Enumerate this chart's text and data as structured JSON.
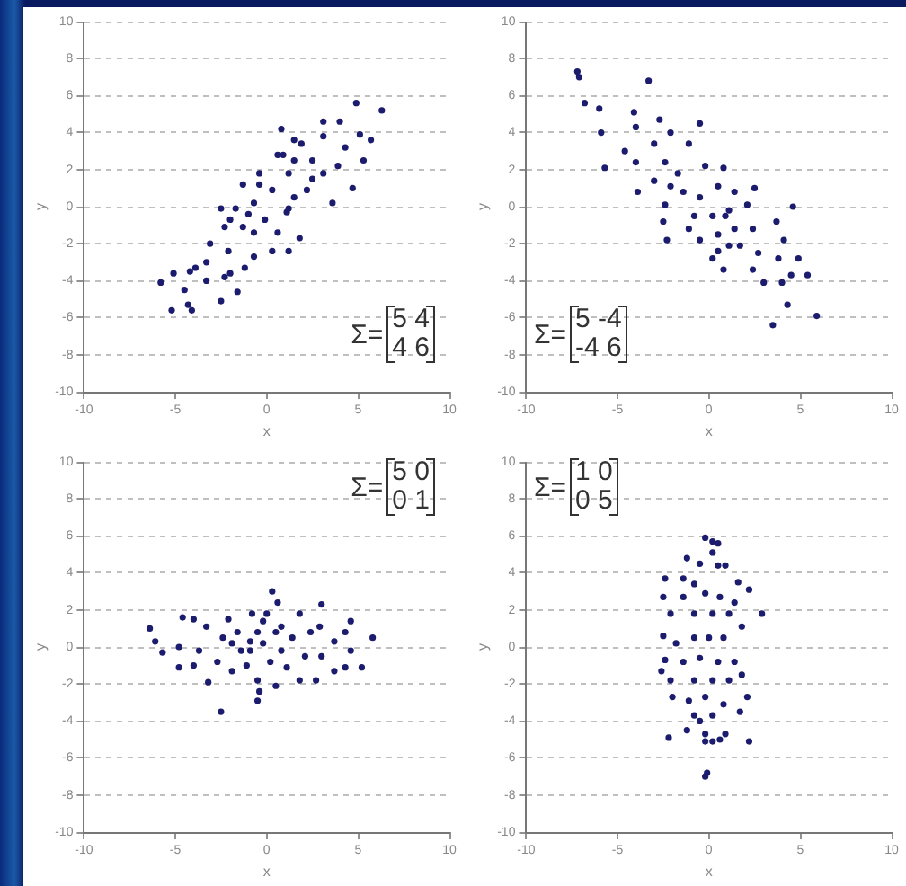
{
  "chart_data": [
    {
      "type": "scatter",
      "xlabel": "x",
      "ylabel": "y",
      "xlim": [
        -10,
        10
      ],
      "xticks": [
        -10,
        -5,
        0,
        5,
        10
      ],
      "ylim": [
        -10,
        10
      ],
      "yticks": [
        -10,
        -8,
        -6,
        -4,
        -2,
        0,
        2,
        4,
        6,
        8,
        10
      ],
      "grid": "y",
      "marker": "circle",
      "annotations": [
        "Σ=",
        "5 4",
        "4 6"
      ],
      "series": [
        {
          "color": "#1c1c6e",
          "x": [
            4.9,
            6.3,
            4.0,
            3.1,
            5.1,
            5.7,
            4.3,
            0.8,
            1.5,
            0.6,
            2.5,
            -0.4,
            1.2,
            3.1,
            5.3,
            3.9,
            4.7,
            3.6,
            -1.3,
            0.3,
            1.5,
            2.2,
            1.2,
            -0.7,
            -1.7,
            -2.5,
            -2.3,
            -1.3,
            -0.7,
            -0.1,
            0.6,
            1.8,
            1.2,
            0.3,
            -0.7,
            -1.2,
            -2.1,
            -3.1,
            -3.3,
            -3.9,
            -2.3,
            -3.3,
            -4.2,
            -5.1,
            -5.8,
            -4.5,
            -4.3,
            -5.2,
            -4.1,
            -2.5,
            -1.6,
            -2.0,
            1.1,
            -2.0,
            -1.0,
            -0.4,
            0.9,
            1.9,
            3.1,
            1.5,
            2.5
          ],
          "values": [
            5.6,
            5.2,
            4.6,
            4.6,
            3.9,
            3.6,
            3.2,
            4.2,
            3.6,
            2.8,
            2.5,
            1.8,
            1.8,
            1.8,
            2.5,
            2.2,
            1.0,
            0.2,
            1.2,
            0.9,
            0.5,
            0.9,
            -0.1,
            0.2,
            -0.1,
            -0.1,
            -1.1,
            -1.1,
            -1.4,
            -0.7,
            -1.4,
            -1.7,
            -2.4,
            -2.4,
            -2.7,
            -3.3,
            -2.4,
            -2.0,
            -3.0,
            -3.3,
            -3.8,
            -4.0,
            -3.5,
            -3.6,
            -4.1,
            -4.5,
            -5.3,
            -5.6,
            -5.6,
            -5.1,
            -4.6,
            -3.6,
            -0.3,
            -0.7,
            -0.4,
            1.2,
            2.8,
            3.4,
            3.8,
            2.5,
            1.5
          ]
        }
      ]
    },
    {
      "type": "scatter",
      "xlabel": "x",
      "ylabel": "y",
      "xlim": [
        -10,
        10
      ],
      "xticks": [
        -10,
        -5,
        0,
        5,
        10
      ],
      "ylim": [
        -10,
        10
      ],
      "yticks": [
        -10,
        -8,
        -6,
        -4,
        -2,
        0,
        2,
        4,
        6,
        8,
        10
      ],
      "grid": "y",
      "marker": "circle",
      "annotations": [
        "Σ=",
        "5 -4",
        "-4 6"
      ],
      "series": [
        {
          "color": "#1c1c6e",
          "x": [
            -7.2,
            -7.1,
            -6.8,
            -6.0,
            -5.9,
            -5.7,
            -3.3,
            -4.1,
            -2.7,
            -4.0,
            -4.6,
            -4.0,
            -3.0,
            -2.1,
            -0.5,
            -1.1,
            -2.4,
            -3.9,
            -3.0,
            -1.7,
            -0.2,
            0.8,
            -2.4,
            -2.5,
            -2.3,
            -1.4,
            -0.5,
            0.5,
            1.4,
            2.5,
            -0.8,
            0.2,
            1.1,
            2.1,
            -0.5,
            0.5,
            1.4,
            2.4,
            0.2,
            0.8,
            1.7,
            2.7,
            2.4,
            3.0,
            3.8,
            4.1,
            3.7,
            4.6,
            4.0,
            4.5,
            5.4,
            4.3,
            3.5,
            5.9,
            4.9,
            0.9,
            -1.1,
            -2.1,
            0.5,
            1.1
          ],
          "values": [
            7.3,
            7.0,
            5.6,
            5.3,
            4.0,
            2.1,
            6.8,
            5.1,
            4.7,
            4.3,
            3.0,
            2.4,
            3.4,
            4.0,
            4.5,
            3.4,
            2.4,
            0.8,
            1.4,
            1.8,
            2.2,
            2.1,
            0.1,
            -0.8,
            -1.8,
            0.8,
            0.5,
            1.1,
            0.8,
            1.0,
            -0.5,
            -0.5,
            -0.2,
            0.1,
            -1.8,
            -1.5,
            -1.2,
            -1.2,
            -2.8,
            -3.4,
            -2.1,
            -2.5,
            -3.4,
            -4.1,
            -2.8,
            -1.8,
            -0.8,
            0.0,
            -4.1,
            -3.7,
            -3.7,
            -5.3,
            -6.4,
            -5.9,
            -2.8,
            -0.5,
            -1.2,
            1.1,
            -2.4,
            -2.1
          ]
        }
      ]
    },
    {
      "type": "scatter",
      "xlabel": "x",
      "ylabel": "y",
      "xlim": [
        -10,
        10
      ],
      "xticks": [
        -10,
        -5,
        0,
        5,
        10
      ],
      "ylim": [
        -10,
        10
      ],
      "yticks": [
        -10,
        -8,
        -6,
        -4,
        -2,
        0,
        2,
        4,
        6,
        8,
        10
      ],
      "grid": "y",
      "marker": "circle",
      "annotations": [
        "Σ=",
        "5 0",
        "0 1"
      ],
      "series": [
        {
          "color": "#1c1c6e",
          "x": [
            -6.4,
            -6.1,
            -5.7,
            -4.8,
            -4.8,
            -4.6,
            -4.0,
            -3.3,
            -3.7,
            -4.0,
            -3.2,
            -2.5,
            -2.7,
            -2.4,
            -2.1,
            -1.6,
            -1.4,
            -1.9,
            -1.1,
            -0.9,
            -0.8,
            -0.5,
            -0.2,
            0.0,
            0.3,
            0.6,
            0.5,
            0.8,
            0.2,
            -0.5,
            -0.5,
            -0.4,
            0.5,
            1.1,
            1.4,
            1.8,
            2.4,
            2.1,
            3.0,
            2.9,
            3.0,
            3.7,
            4.3,
            4.6,
            4.3,
            3.7,
            5.2,
            5.8,
            4.6,
            2.7,
            1.8,
            -0.9,
            -1.9,
            0.8,
            -0.2
          ],
          "values": [
            1.0,
            0.3,
            -0.3,
            0.0,
            -1.1,
            1.6,
            1.5,
            1.1,
            -0.2,
            -1.0,
            -1.9,
            -3.5,
            -0.8,
            0.5,
            1.5,
            0.8,
            -0.2,
            -1.3,
            -1.0,
            0.3,
            1.8,
            0.8,
            0.2,
            1.8,
            3.0,
            2.4,
            0.8,
            -0.2,
            -0.8,
            -1.8,
            -2.9,
            -2.4,
            -2.1,
            -1.1,
            0.5,
            1.8,
            0.8,
            -0.5,
            2.3,
            1.1,
            -0.5,
            0.3,
            0.8,
            -0.2,
            -1.1,
            -1.3,
            -1.1,
            0.5,
            1.4,
            -1.8,
            -1.8,
            -0.2,
            0.2,
            1.1,
            1.4
          ]
        }
      ]
    },
    {
      "type": "scatter",
      "xlabel": "x",
      "ylabel": "y",
      "xlim": [
        -10,
        10
      ],
      "xticks": [
        -10,
        -5,
        0,
        5,
        10
      ],
      "ylim": [
        -10,
        10
      ],
      "yticks": [
        -10,
        -8,
        -6,
        -4,
        -2,
        0,
        2,
        4,
        6,
        8,
        10
      ],
      "grid": "y",
      "marker": "circle",
      "annotations": [
        "Σ=",
        "1 0",
        "0 5"
      ],
      "series": [
        {
          "color": "#1c1c6e",
          "x": [
            -0.2,
            0.2,
            0.5,
            0.2,
            -1.2,
            -0.5,
            0.5,
            0.9,
            -2.4,
            -1.4,
            -0.8,
            1.6,
            2.2,
            -2.5,
            -1.4,
            -0.2,
            0.6,
            1.4,
            2.9,
            -2.1,
            -0.8,
            0.2,
            1.1,
            1.8,
            -2.5,
            -1.8,
            -0.8,
            0.0,
            0.8,
            -2.4,
            -2.6,
            -1.4,
            -0.5,
            0.5,
            1.4,
            1.8,
            -2.1,
            -0.8,
            0.2,
            1.1,
            -2.0,
            -1.1,
            -0.2,
            0.8,
            2.1,
            -0.8,
            0.2,
            1.7,
            -1.2,
            -0.2,
            0.9,
            -2.2,
            -0.2,
            0.2,
            2.2,
            -0.1,
            -0.2,
            0.6,
            -0.5
          ],
          "values": [
            5.9,
            5.7,
            5.6,
            5.1,
            4.8,
            4.5,
            4.4,
            4.4,
            3.7,
            3.7,
            3.4,
            3.5,
            3.1,
            2.7,
            2.7,
            2.9,
            2.7,
            2.4,
            1.8,
            1.8,
            1.8,
            1.8,
            1.8,
            1.1,
            0.6,
            0.2,
            0.5,
            0.5,
            0.5,
            -0.7,
            -1.3,
            -0.8,
            -0.6,
            -0.8,
            -0.8,
            -1.5,
            -1.8,
            -1.8,
            -1.8,
            -1.8,
            -2.7,
            -2.9,
            -2.7,
            -3.1,
            -2.7,
            -3.7,
            -3.7,
            -3.5,
            -4.5,
            -4.7,
            -4.7,
            -4.9,
            -5.1,
            -5.1,
            -5.1,
            -6.8,
            -7.0,
            -5.0,
            -4.0
          ]
        }
      ]
    }
  ]
}
